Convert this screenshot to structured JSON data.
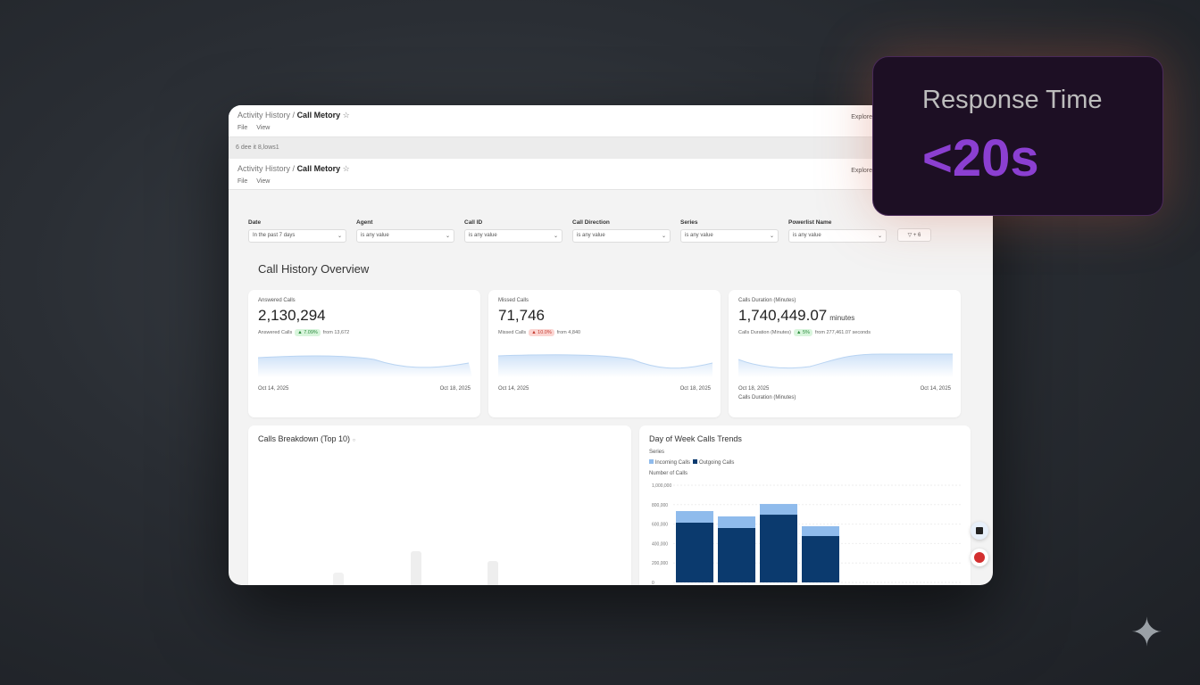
{
  "window": {
    "breadcrumb_parent": "Activity History",
    "breadcrumb_sep": "/",
    "breadcrumb_current": "Call Metory",
    "menu": [
      "File",
      "View"
    ],
    "explore": "Explore",
    "strip_text": "6 dee it 8,lows1"
  },
  "filters": [
    {
      "label": "Date",
      "value": "In the past 7 days"
    },
    {
      "label": "Agent",
      "value": "is any value"
    },
    {
      "label": "Call ID",
      "value": "is any value"
    },
    {
      "label": "Call Direction",
      "value": "is any value"
    },
    {
      "label": "Series",
      "value": "is any value"
    },
    {
      "label": "Powerlist Name",
      "value": "is any value"
    }
  ],
  "more_filters": "+ 6",
  "overview_title": "Call History Overview",
  "kpis": [
    {
      "label": "Answered Calls",
      "value": "2,130,294",
      "unit": "",
      "sub": "Answered Calls",
      "badge": "▲ 7.09%",
      "badge_color": "green",
      "from": "from 13,672",
      "start": "Oct 14, 2025",
      "end": "Oct 18, 2025",
      "extra": ""
    },
    {
      "label": "Missed Calls",
      "value": "71,746",
      "unit": "",
      "sub": "Missed Calls",
      "badge": "▲ 10.0%",
      "badge_color": "red",
      "from": "from 4,840",
      "start": "Oct 14, 2025",
      "end": "Oct 18, 2025",
      "extra": ""
    },
    {
      "label": "Calls Duration (Minutes)",
      "value": "1,740,449.07",
      "unit": "minutes",
      "sub": "Calls Duration (Minutes)",
      "badge": "▲ 5%",
      "badge_color": "green",
      "from": "from 277,461.07 seconds",
      "start": "Oct 18, 2025",
      "end": "Oct 14, 2025",
      "extra": "Calls Duration (Minutes)"
    }
  ],
  "breakdown_title": "Calls Breakdown (Top 10)",
  "chart_data": {
    "type": "bar",
    "stacked": true,
    "title": "Day of Week Calls Trends",
    "legend_title": "Series",
    "ylabel": "Number of Calls",
    "legend_position": "top-left",
    "grid": true,
    "ylim": [
      0,
      1000000
    ],
    "yticks": [
      "0",
      "200,000",
      "400,000",
      "600,000",
      "800,000",
      "1,000,000"
    ],
    "series": [
      {
        "name": "Outgoing Calls",
        "color": "#0b3a6e",
        "values": [
          615000,
          560000,
          697000,
          477000
        ]
      },
      {
        "name": "Incoming Calls",
        "color": "#8fbbec",
        "values": [
          119000,
          119000,
          110000,
          101000
        ]
      }
    ]
  },
  "promo": {
    "title": "Response Time",
    "value": "<20s",
    "accent": "#8b3fd1"
  }
}
